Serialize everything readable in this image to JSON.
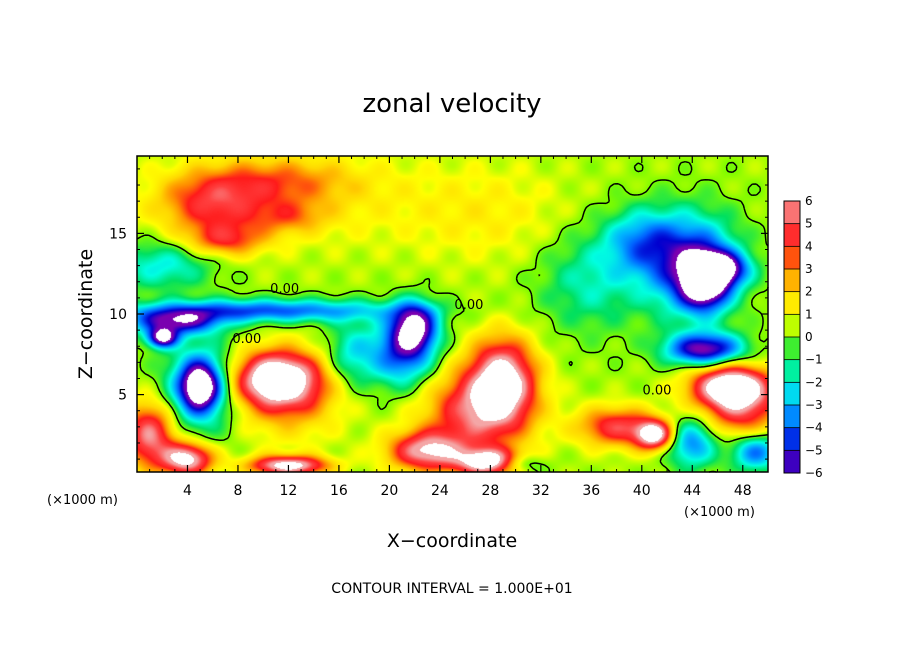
{
  "chart_data": {
    "type": "heatmap",
    "title": "zonal velocity",
    "xlabel": "X−coordinate",
    "ylabel": "Z−coordinate",
    "x_unit_label": "(×1000 m)",
    "x_unit_label_right": "(×1000 m)",
    "xlim": [
      0,
      50
    ],
    "ylim": [
      0.2,
      19.8
    ],
    "x_ticks": [
      4,
      8,
      12,
      16,
      20,
      24,
      28,
      32,
      36,
      40,
      44,
      48
    ],
    "y_ticks": [
      5,
      10,
      15
    ],
    "colorbar": {
      "range": [
        -6,
        6
      ],
      "ticks": [
        6,
        5,
        4,
        3,
        2,
        1,
        0,
        -1,
        -2,
        -3,
        -4,
        -5,
        -6
      ],
      "colors": {
        "6": "#f4a6a6",
        "5": "#ff4040",
        "4": "#ff1a1a",
        "3": "#ff8c00",
        "2": "#ffd700",
        "1": "#ffff00",
        "0": "#7cfc00",
        "-1": "#00e060",
        "-2": "#00ffe0",
        "-3": "#00b4ff",
        "-4": "#0060ff",
        "-5": "#0000d0",
        "-6": "#7a00b0"
      }
    },
    "contour_labels": [
      {
        "text": "0.00",
        "x": 11.7,
        "z": 11.3
      },
      {
        "text": "0.00",
        "x": 8.7,
        "z": 8.2
      },
      {
        "text": "0.00",
        "x": 26.3,
        "z": 10.3
      },
      {
        "text": "0.00",
        "x": 41.2,
        "z": 5.0
      }
    ],
    "footer": "CONTOUR INTERVAL = 1.000E+01",
    "features": [
      {
        "x": 14,
        "z": 17.0,
        "v": 0.9,
        "sx": 14,
        "sz": 3
      },
      {
        "x": 6,
        "z": 16.8,
        "v": 3.5,
        "sx": 4,
        "sz": 1.8
      },
      {
        "x": 11,
        "z": 18.2,
        "v": 2.5,
        "sx": 6,
        "sz": 1.5
      },
      {
        "x": 7,
        "z": 14.6,
        "v": 3.2,
        "sx": 3,
        "sz": 1
      },
      {
        "x": 12,
        "z": 16.0,
        "v": 2.0,
        "sx": 3,
        "sz": 1
      },
      {
        "x": 28,
        "z": 16.0,
        "v": 0.8,
        "sx": 6,
        "sz": 3
      },
      {
        "x": 2,
        "z": 13.0,
        "v": -2.5,
        "sx": 4,
        "sz": 1.5
      },
      {
        "x": 40,
        "z": 14.5,
        "v": -3.2,
        "sx": 3,
        "sz": 2
      },
      {
        "x": 44,
        "z": 13.0,
        "v": -5.5,
        "sx": 3.5,
        "sz": 3
      },
      {
        "x": 45,
        "z": 12.0,
        "v": -6.8,
        "sx": 1.8,
        "sz": 1.6
      },
      {
        "x": 46.5,
        "z": 12.8,
        "v": -5.0,
        "sx": 2,
        "sz": 1
      },
      {
        "x": 45,
        "z": 7.8,
        "v": -6.5,
        "sx": 3,
        "sz": 1
      },
      {
        "x": 36,
        "z": 12.0,
        "v": -2.0,
        "sx": 4,
        "sz": 3
      },
      {
        "x": 10,
        "z": 10.2,
        "v": -4.5,
        "sx": 10,
        "sz": 0.7
      },
      {
        "x": 3,
        "z": 9.5,
        "v": -5.5,
        "sx": 3.5,
        "sz": 0.8
      },
      {
        "x": 2,
        "z": 8.5,
        "v": -6.5,
        "sx": 1.2,
        "sz": 0.6
      },
      {
        "x": 22,
        "z": 9.2,
        "v": -6.5,
        "sx": 1.8,
        "sz": 1.5
      },
      {
        "x": 21,
        "z": 7.5,
        "v": -4.5,
        "sx": 2.5,
        "sz": 2
      },
      {
        "x": 17,
        "z": 7.5,
        "v": -2.5,
        "sx": 2,
        "sz": 2
      },
      {
        "x": 5,
        "z": 5.5,
        "v": -7.0,
        "sx": 1.6,
        "sz": 1.5
      },
      {
        "x": 5,
        "z": 5.5,
        "v": -3.0,
        "sx": 3,
        "sz": 3
      },
      {
        "x": 11,
        "z": 6.0,
        "v": 7.2,
        "sx": 3.2,
        "sz": 1.6
      },
      {
        "x": 12,
        "z": 5.0,
        "v": 3.0,
        "sx": 4,
        "sz": 2.5
      },
      {
        "x": 29,
        "z": 6.0,
        "v": 6.5,
        "sx": 2.5,
        "sz": 2.5
      },
      {
        "x": 27,
        "z": 4.0,
        "v": 5.0,
        "sx": 4,
        "sz": 2.5
      },
      {
        "x": 23,
        "z": 1.5,
        "v": 6.0,
        "sx": 3,
        "sz": 1.2
      },
      {
        "x": 28,
        "z": 0.8,
        "v": 7.5,
        "sx": 2.5,
        "sz": 0.8
      },
      {
        "x": 1,
        "z": 2.5,
        "v": 5.5,
        "sx": 2,
        "sz": 2
      },
      {
        "x": 4,
        "z": 1.0,
        "v": 7.0,
        "sx": 2,
        "sz": 1
      },
      {
        "x": 12,
        "z": 0.6,
        "v": 7.0,
        "sx": 3,
        "sz": 0.6
      },
      {
        "x": 38,
        "z": 3.0,
        "v": 4.5,
        "sx": 3,
        "sz": 1.2
      },
      {
        "x": 41,
        "z": 2.5,
        "v": 7.0,
        "sx": 1.5,
        "sz": 0.9
      },
      {
        "x": 47,
        "z": 5.5,
        "v": 7.5,
        "sx": 3,
        "sz": 1.3
      },
      {
        "x": 48,
        "z": 4.0,
        "v": 4.0,
        "sx": 3,
        "sz": 2
      },
      {
        "x": 49,
        "z": 1.5,
        "v": -4.5,
        "sx": 2,
        "sz": 1.2
      },
      {
        "x": 44,
        "z": 2.0,
        "v": -4.0,
        "sx": 2,
        "sz": 1.5
      },
      {
        "x": 30,
        "z": 0.7,
        "v": -3.0,
        "sx": 2,
        "sz": 0.6
      }
    ]
  }
}
